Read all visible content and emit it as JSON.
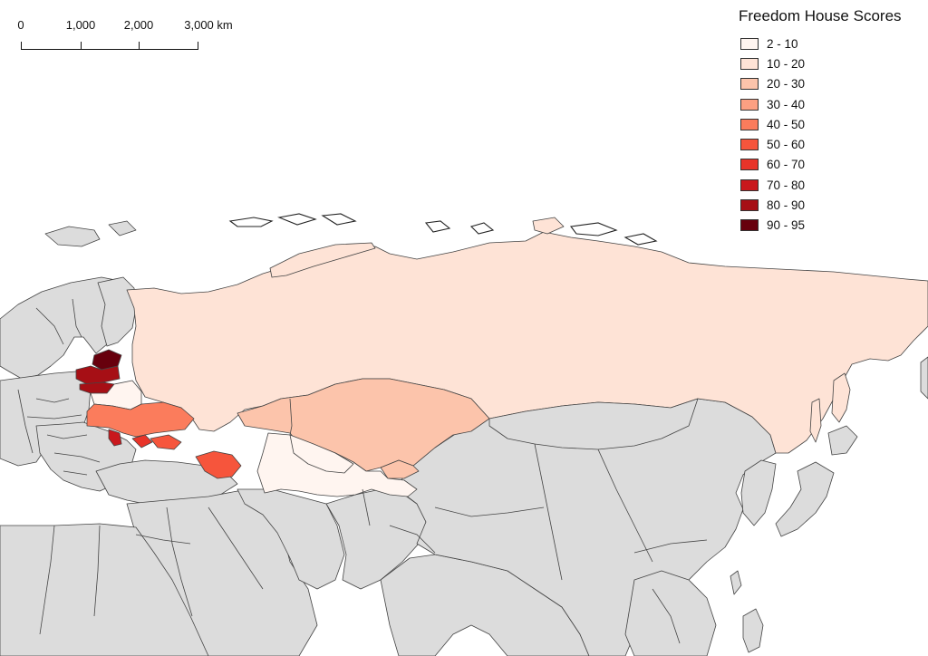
{
  "legend": {
    "title": "Freedom House Scores",
    "items": [
      {
        "label": "2 - 10",
        "color": "#fff5f0"
      },
      {
        "label": "10 - 20",
        "color": "#fee3d6"
      },
      {
        "label": "20 - 30",
        "color": "#fcc4ab"
      },
      {
        "label": "30 - 40",
        "color": "#fca082"
      },
      {
        "label": "40 - 50",
        "color": "#fb7c5c"
      },
      {
        "label": "50 - 60",
        "color": "#f6553c"
      },
      {
        "label": "60 - 70",
        "color": "#e83429"
      },
      {
        "label": "70 - 80",
        "color": "#c9181d"
      },
      {
        "label": "80 - 90",
        "color": "#a60f15"
      },
      {
        "label": "90 - 95",
        "color": "#67000d"
      }
    ]
  },
  "scale_bar": {
    "labels": [
      "0",
      "1,000",
      "2,000",
      "3,000 km"
    ]
  },
  "colors": {
    "no_data": "#dcdcdc",
    "water": "#ffffff",
    "border": "#444444"
  }
}
